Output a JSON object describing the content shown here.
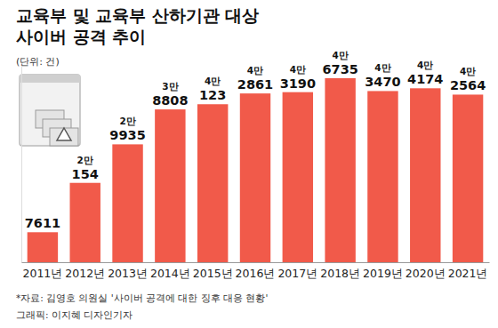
{
  "chart_data": {
    "type": "bar",
    "title": "교육부 및 교육부 산하기관 대상\n사이버 공격 추이",
    "ylabel": "(단위: 건)",
    "source": "*자료: 김영호 의원실 '사이버 공격에 대한 징후 대응 현황'",
    "credit": "그래픽: 이지혜 디자인기자",
    "categories": [
      "2011년",
      "2012년",
      "2013년",
      "2014년",
      "2015년",
      "2016년",
      "2017년",
      "2018년",
      "2019년",
      "2020년",
      "2021년"
    ],
    "values": [
      7611,
      20154,
      29935,
      38808,
      40123,
      42861,
      43190,
      46735,
      43470,
      44174,
      42564
    ],
    "value_labels": [
      "7611",
      "2만 154",
      "2만 9935",
      "3만 8808",
      "4만 123",
      "4만 2861",
      "4만 3190",
      "4만 6735",
      "4만 3470",
      "4만 4174",
      "4만 2564"
    ],
    "color": "#f15a4a",
    "ylim": [
      0,
      50000
    ],
    "data_labels": true,
    "tick_labels": "x",
    "grid": false
  }
}
